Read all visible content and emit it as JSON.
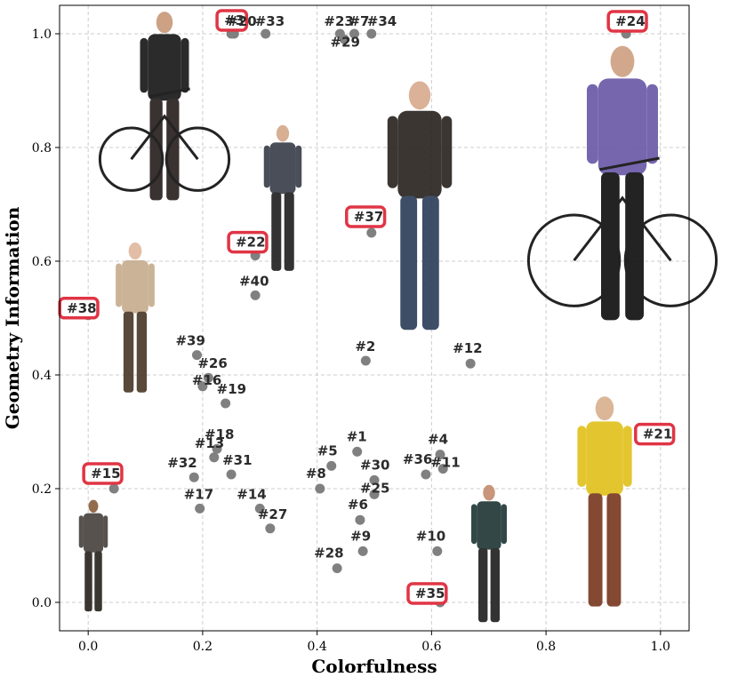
{
  "chart_data": {
    "type": "scatter",
    "title": "",
    "xlabel": "Colorfulness",
    "ylabel": "Geometry Information",
    "xlim": [
      -0.05,
      1.05
    ],
    "ylim": [
      -0.05,
      1.05
    ],
    "xticks": [
      0.0,
      0.2,
      0.4,
      0.6,
      0.8,
      1.0
    ],
    "yticks": [
      0.0,
      0.2,
      0.4,
      0.6,
      0.8,
      1.0
    ],
    "tick_labels_x": [
      "0.0",
      "0.2",
      "0.4",
      "0.6",
      "0.8",
      "1.0"
    ],
    "tick_labels_y": [
      "0.0",
      "0.2",
      "0.4",
      "0.6",
      "0.8",
      "1.0"
    ],
    "grid": true,
    "marker_color": "#808080",
    "highlight_color": "#e03545",
    "points": [
      {
        "label": "#1",
        "x": 0.47,
        "y": 0.265
      },
      {
        "label": "#2",
        "x": 0.485,
        "y": 0.425
      },
      {
        "label": "#3",
        "x": 0.25,
        "y": 1.0,
        "highlight": true
      },
      {
        "label": "#4",
        "x": 0.615,
        "y": 0.26
      },
      {
        "label": "#5",
        "x": 0.425,
        "y": 0.24
      },
      {
        "label": "#6",
        "x": 0.475,
        "y": 0.145
      },
      {
        "label": "#7",
        "x": 0.465,
        "y": 1.0
      },
      {
        "label": "#8",
        "x": 0.405,
        "y": 0.2
      },
      {
        "label": "#9",
        "x": 0.48,
        "y": 0.09
      },
      {
        "label": "#10",
        "x": 0.61,
        "y": 0.09
      },
      {
        "label": "#11",
        "x": 0.62,
        "y": 0.235
      },
      {
        "label": "#12",
        "x": 0.668,
        "y": 0.42
      },
      {
        "label": "#13",
        "x": 0.22,
        "y": 0.255
      },
      {
        "label": "#14",
        "x": 0.3,
        "y": 0.165
      },
      {
        "label": "#15",
        "x": 0.045,
        "y": 0.2,
        "highlight": true
      },
      {
        "label": "#16",
        "x": 0.2,
        "y": 0.38
      },
      {
        "label": "#17",
        "x": 0.195,
        "y": 0.165
      },
      {
        "label": "#18",
        "x": 0.225,
        "y": 0.27
      },
      {
        "label": "#19",
        "x": 0.24,
        "y": 0.35
      },
      {
        "label": "#20",
        "x": 0.255,
        "y": 1.0
      },
      {
        "label": "#21",
        "x": 1.0,
        "y": 0.285,
        "highlight": true
      },
      {
        "label": "#22",
        "x": 0.292,
        "y": 0.61,
        "highlight": true
      },
      {
        "label": "#23",
        "x": 0.44,
        "y": 1.0
      },
      {
        "label": "#24",
        "x": 0.94,
        "y": 1.0,
        "highlight": true
      },
      {
        "label": "#25",
        "x": 0.5,
        "y": 0.19
      },
      {
        "label": "#26",
        "x": 0.21,
        "y": 0.395
      },
      {
        "label": "#27",
        "x": 0.318,
        "y": 0.13
      },
      {
        "label": "#28",
        "x": 0.435,
        "y": 0.06
      },
      {
        "label": "#29",
        "x": 0.448,
        "y": 0.99
      },
      {
        "label": "#30",
        "x": 0.5,
        "y": 0.215
      },
      {
        "label": "#31",
        "x": 0.25,
        "y": 0.225
      },
      {
        "label": "#32",
        "x": 0.185,
        "y": 0.22
      },
      {
        "label": "#33",
        "x": 0.31,
        "y": 1.0
      },
      {
        "label": "#34",
        "x": 0.495,
        "y": 1.0
      },
      {
        "label": "#35",
        "x": 0.615,
        "y": 0.0,
        "highlight": true
      },
      {
        "label": "#36",
        "x": 0.59,
        "y": 0.225
      },
      {
        "label": "#37",
        "x": 0.495,
        "y": 0.65,
        "highlight": true
      },
      {
        "label": "#38",
        "x": 0.0,
        "y": 0.505,
        "highlight": true
      },
      {
        "label": "#39",
        "x": 0.19,
        "y": 0.435
      },
      {
        "label": "#40",
        "x": 0.292,
        "y": 0.54
      }
    ]
  }
}
